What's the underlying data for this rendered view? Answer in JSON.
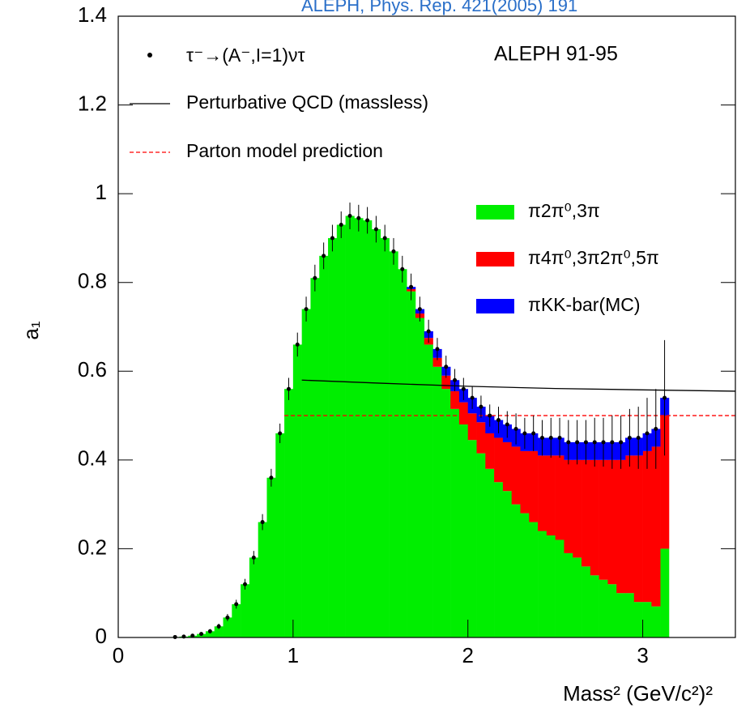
{
  "chart_data": {
    "type": "histogram",
    "title": "ALEPH, Phys. Rep. 421(2005) 191",
    "annotation": "ALEPH 91-95",
    "xlabel": "Mass² (GeV/c²)²",
    "ylabel": "a₁",
    "xlim": [
      0,
      3.53
    ],
    "ylim": [
      0,
      1.4
    ],
    "xticks": [
      0,
      1,
      2,
      3
    ],
    "yticks": [
      0,
      0.2,
      0.4,
      0.6,
      0.8,
      1,
      1.2,
      1.4
    ],
    "bins": [
      0.3,
      0.35,
      0.4,
      0.45,
      0.5,
      0.55,
      0.6,
      0.65,
      0.7,
      0.75,
      0.8,
      0.85,
      0.9,
      0.95,
      1.0,
      1.05,
      1.1,
      1.15,
      1.2,
      1.25,
      1.3,
      1.35,
      1.4,
      1.45,
      1.5,
      1.55,
      1.6,
      1.65,
      1.7,
      1.75,
      1.8,
      1.85,
      1.9,
      1.95,
      2.0,
      2.05,
      2.1,
      2.15,
      2.2,
      2.25,
      2.3,
      2.35,
      2.4,
      2.45,
      2.5,
      2.55,
      2.6,
      2.65,
      2.7,
      2.75,
      2.8,
      2.85,
      2.9,
      2.95,
      3.0,
      3.05,
      3.1,
      3.15
    ],
    "series": [
      {
        "name": "π2π⁰,3π",
        "color": "#00ee00",
        "values": [
          0.001,
          0.002,
          0.004,
          0.008,
          0.014,
          0.025,
          0.045,
          0.075,
          0.12,
          0.18,
          0.26,
          0.36,
          0.46,
          0.56,
          0.66,
          0.74,
          0.81,
          0.86,
          0.9,
          0.93,
          0.95,
          0.945,
          0.94,
          0.92,
          0.9,
          0.87,
          0.83,
          0.78,
          0.72,
          0.66,
          0.61,
          0.56,
          0.515,
          0.48,
          0.445,
          0.415,
          0.38,
          0.35,
          0.33,
          0.3,
          0.28,
          0.26,
          0.24,
          0.23,
          0.22,
          0.19,
          0.18,
          0.16,
          0.14,
          0.13,
          0.12,
          0.1,
          0.1,
          0.08,
          0.08,
          0.07,
          0.2
        ]
      },
      {
        "name": "π4π⁰,3π2π⁰,5π",
        "color": "#ff0000",
        "values": [
          0,
          0,
          0,
          0,
          0,
          0,
          0,
          0,
          0,
          0,
          0,
          0,
          0,
          0,
          0,
          0,
          0,
          0,
          0,
          0,
          0,
          0,
          0,
          0,
          0,
          0,
          0,
          0.005,
          0.01,
          0.015,
          0.02,
          0.03,
          0.04,
          0.05,
          0.06,
          0.07,
          0.08,
          0.1,
          0.11,
          0.13,
          0.14,
          0.16,
          0.17,
          0.18,
          0.19,
          0.21,
          0.22,
          0.24,
          0.26,
          0.27,
          0.28,
          0.3,
          0.31,
          0.33,
          0.34,
          0.36,
          0.3
        ]
      },
      {
        "name": "πKK-bar(MC)",
        "color": "#0000ff",
        "values": [
          0,
          0,
          0,
          0,
          0,
          0,
          0,
          0,
          0,
          0,
          0,
          0,
          0,
          0,
          0,
          0,
          0,
          0,
          0,
          0,
          0,
          0,
          0,
          0,
          0,
          0,
          0,
          0.005,
          0.01,
          0.015,
          0.02,
          0.02,
          0.025,
          0.03,
          0.035,
          0.035,
          0.04,
          0.04,
          0.04,
          0.04,
          0.04,
          0.04,
          0.04,
          0.04,
          0.04,
          0.04,
          0.04,
          0.04,
          0.04,
          0.04,
          0.04,
          0.04,
          0.04,
          0.04,
          0.04,
          0.04,
          0.04
        ]
      }
    ],
    "points": {
      "name": "τ⁻→(A⁻,I=1)ντ",
      "color": "#000000",
      "values": [
        0.001,
        0.002,
        0.004,
        0.008,
        0.014,
        0.025,
        0.045,
        0.075,
        0.12,
        0.18,
        0.26,
        0.36,
        0.46,
        0.56,
        0.66,
        0.74,
        0.81,
        0.86,
        0.9,
        0.93,
        0.95,
        0.945,
        0.94,
        0.92,
        0.9,
        0.87,
        0.83,
        0.79,
        0.74,
        0.69,
        0.65,
        0.61,
        0.58,
        0.56,
        0.54,
        0.52,
        0.5,
        0.49,
        0.48,
        0.47,
        0.46,
        0.46,
        0.45,
        0.45,
        0.45,
        0.44,
        0.44,
        0.44,
        0.44,
        0.44,
        0.44,
        0.44,
        0.45,
        0.45,
        0.46,
        0.47,
        0.54
      ],
      "errors": [
        0.002,
        0.002,
        0.003,
        0.004,
        0.005,
        0.006,
        0.008,
        0.01,
        0.012,
        0.015,
        0.018,
        0.02,
        0.022,
        0.025,
        0.027,
        0.028,
        0.03,
        0.03,
        0.03,
        0.03,
        0.03,
        0.03,
        0.03,
        0.03,
        0.03,
        0.03,
        0.03,
        0.03,
        0.028,
        0.026,
        0.025,
        0.025,
        0.025,
        0.025,
        0.025,
        0.025,
        0.025,
        0.03,
        0.03,
        0.035,
        0.035,
        0.04,
        0.04,
        0.045,
        0.045,
        0.05,
        0.05,
        0.05,
        0.055,
        0.055,
        0.06,
        0.06,
        0.065,
        0.07,
        0.08,
        0.09,
        0.13
      ]
    },
    "lines": [
      {
        "name": "Perturbative QCD (massless)",
        "color": "#000000",
        "dashed": false,
        "x": [
          1.05,
          1.5,
          2,
          2.5,
          3,
          3.53
        ],
        "y": [
          0.58,
          0.573,
          0.566,
          0.561,
          0.558,
          0.555
        ]
      },
      {
        "name": "Parton model prediction",
        "color": "#ff0000",
        "dashed": true,
        "x": [
          0.95,
          3.53
        ],
        "y": [
          0.5,
          0.5
        ]
      }
    ]
  }
}
